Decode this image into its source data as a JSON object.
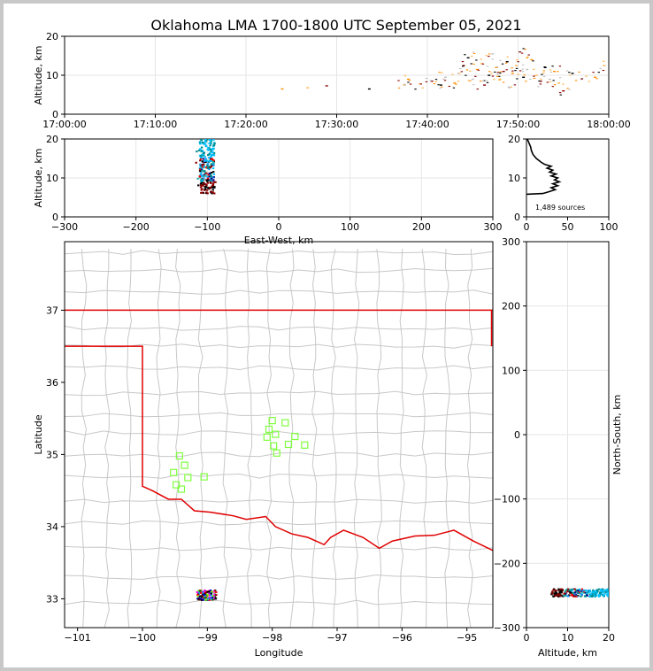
{
  "title": "Oklahoma LMA 1700-1800 UTC September 05, 2021",
  "colors": {
    "state_border": "#e00000",
    "county_lines": "#c8c8c8",
    "station": "#7fff3f",
    "grid": "#e6e6e6",
    "frame_outer": "#c8c8c8"
  },
  "chart_data": [
    {
      "type": "scatter",
      "panel": "altitude-time",
      "ylabel": "Altitude, km",
      "xlabel": "",
      "ylim": [
        0,
        20
      ],
      "yticks": [
        "0",
        "10",
        "20"
      ],
      "xticks": [
        "17:00:00",
        "17:10:00",
        "17:20:00",
        "17:30:00",
        "17:40:00",
        "17:50:00",
        "18:00:00"
      ],
      "grid": true,
      "point_colors": [
        "#ff8c00",
        "#ffb347",
        "#8b0000",
        "#000000",
        "#c0c0c0"
      ],
      "points_note_minutes": [
        [
          24.0,
          6.5
        ],
        [
          26.8,
          6.8
        ],
        [
          28.9,
          7.3
        ],
        [
          33.6,
          6.5
        ],
        [
          37.5,
          7.5
        ],
        [
          37.9,
          9.0
        ],
        [
          39.2,
          7.8
        ],
        [
          40.5,
          8.5
        ],
        [
          41.5,
          7.5
        ],
        [
          42.0,
          9.5
        ],
        [
          43.0,
          8.0
        ],
        [
          43.5,
          10.5
        ],
        [
          44.0,
          12.5
        ],
        [
          44.5,
          14.5
        ],
        [
          45.0,
          9.0
        ],
        [
          45.5,
          11.5
        ],
        [
          46.0,
          13.0
        ],
        [
          46.3,
          7.5
        ],
        [
          46.8,
          10.0
        ],
        [
          47.2,
          15.5
        ],
        [
          47.6,
          12.0
        ],
        [
          48.0,
          9.0
        ],
        [
          48.4,
          11.0
        ],
        [
          48.8,
          13.5
        ],
        [
          49.0,
          7.0
        ],
        [
          49.4,
          10.5
        ],
        [
          49.8,
          12.5
        ],
        [
          50.2,
          16.0
        ],
        [
          50.6,
          9.5
        ],
        [
          51.0,
          11.5
        ],
        [
          51.5,
          14.0
        ],
        [
          52.0,
          10.0
        ],
        [
          52.5,
          8.5
        ],
        [
          53.0,
          12.0
        ],
        [
          53.5,
          9.0
        ],
        [
          54.0,
          11.0
        ],
        [
          54.5,
          8.0
        ],
        [
          55.0,
          6.0
        ],
        [
          56.0,
          10.5
        ],
        [
          57.0,
          9.0
        ],
        [
          58.5,
          9.5
        ],
        [
          59.5,
          12.5
        ]
      ]
    },
    {
      "type": "scatter",
      "panel": "altitude-eastwest",
      "xlabel": "East-West, km",
      "ylabel": "Altitude, km",
      "xlim": [
        -300,
        300
      ],
      "ylim": [
        0,
        20
      ],
      "xticks": [
        "−300",
        "−200",
        "−100",
        "0",
        "100",
        "200",
        "300"
      ],
      "yticks": [
        "0",
        "10",
        "20"
      ],
      "grid": true,
      "cluster_x_range": [
        -115,
        -85
      ],
      "cluster_y_range": [
        6,
        20
      ]
    },
    {
      "type": "line",
      "panel": "altitude-histogram",
      "annotation": "1,489 sources",
      "xlim": [
        0,
        100
      ],
      "ylim": [
        0,
        20
      ],
      "xticks": [
        "0",
        "50",
        "100"
      ],
      "yticks": [
        "0",
        "10",
        "20"
      ],
      "profile": [
        [
          1,
          20.0
        ],
        [
          3,
          19.0
        ],
        [
          5,
          18.0
        ],
        [
          6,
          17.0
        ],
        [
          8,
          16.0
        ],
        [
          12,
          15.0
        ],
        [
          18,
          14.0
        ],
        [
          22,
          13.5
        ],
        [
          30,
          13.0
        ],
        [
          25,
          12.5
        ],
        [
          32,
          12.0
        ],
        [
          28,
          11.5
        ],
        [
          36,
          11.0
        ],
        [
          30,
          10.5
        ],
        [
          38,
          10.0
        ],
        [
          34,
          9.5
        ],
        [
          40,
          9.0
        ],
        [
          32,
          8.5
        ],
        [
          38,
          8.0
        ],
        [
          30,
          7.5
        ],
        [
          35,
          7.0
        ],
        [
          28,
          6.5
        ],
        [
          20,
          6.0
        ],
        [
          0,
          5.8
        ]
      ]
    },
    {
      "type": "map",
      "panel": "plan-view",
      "xlabel": "Longitude",
      "ylabel": "Latitude",
      "xlim": [
        -101.2,
        -94.6
      ],
      "ylim": [
        32.6,
        37.95
      ],
      "xticks": [
        "−101",
        "−100",
        "−99",
        "−98",
        "−97",
        "−96",
        "−95"
      ],
      "yticks": [
        "33",
        "34",
        "35",
        "36",
        "37"
      ],
      "stations": [
        [
          -99.43,
          34.98
        ],
        [
          -99.35,
          34.85
        ],
        [
          -99.52,
          34.75
        ],
        [
          -99.3,
          34.68
        ],
        [
          -99.48,
          34.58
        ],
        [
          -99.4,
          34.52
        ],
        [
          -99.05,
          34.69
        ],
        [
          -98.0,
          35.47
        ],
        [
          -97.8,
          35.44
        ],
        [
          -98.05,
          35.35
        ],
        [
          -97.95,
          35.28
        ],
        [
          -98.08,
          35.24
        ],
        [
          -97.65,
          35.25
        ],
        [
          -97.98,
          35.12
        ],
        [
          -97.75,
          35.14
        ],
        [
          -97.5,
          35.13
        ],
        [
          -97.93,
          35.02
        ]
      ],
      "cluster_lon_range": [
        -99.2,
        -98.8
      ],
      "cluster_lat_range": [
        32.98,
        33.12
      ]
    },
    {
      "type": "scatter",
      "panel": "northsouth-altitude",
      "xlabel": "Altitude, km",
      "ylabel": "North-South, km",
      "xlim": [
        0,
        20
      ],
      "ylim": [
        -300,
        300
      ],
      "xticks": [
        "0",
        "10",
        "20"
      ],
      "yticks": [
        "−300",
        "−200",
        "−100",
        "0",
        "100",
        "200",
        "300"
      ],
      "grid": true,
      "cluster_alt_range": [
        6,
        20
      ],
      "cluster_ns_range": [
        -252,
        -240
      ]
    }
  ]
}
